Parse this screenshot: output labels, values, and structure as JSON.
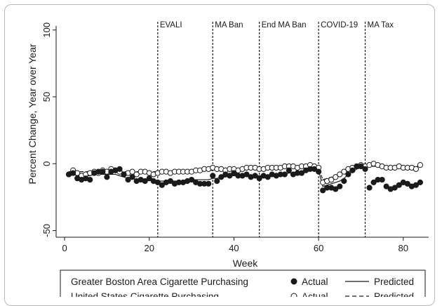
{
  "chart_data": {
    "type": "line",
    "xlabel": "Week",
    "ylabel": "Percent Change, Year over Year",
    "xlim": [
      -2,
      86
    ],
    "ylim": [
      -55,
      103
    ],
    "x_ticks": [
      0,
      20,
      40,
      60,
      80
    ],
    "y_ticks": [
      100,
      50,
      0,
      -50
    ],
    "events": [
      {
        "label": "EVALI",
        "x": 22
      },
      {
        "label": "MA Ban",
        "x": 35
      },
      {
        "label": "End MA Ban",
        "x": 46
      },
      {
        "label": "COVID-19",
        "x": 60
      },
      {
        "label": "MA Tax",
        "x": 71
      }
    ],
    "weeks": [
      1,
      2,
      3,
      4,
      5,
      6,
      7,
      8,
      9,
      10,
      11,
      12,
      13,
      14,
      15,
      16,
      17,
      18,
      19,
      20,
      21,
      22,
      23,
      24,
      25,
      26,
      27,
      28,
      29,
      30,
      31,
      32,
      33,
      34,
      35,
      36,
      37,
      38,
      39,
      40,
      41,
      42,
      43,
      44,
      45,
      46,
      47,
      48,
      49,
      50,
      51,
      52,
      53,
      54,
      55,
      56,
      57,
      58,
      59,
      60,
      61,
      62,
      63,
      64,
      65,
      66,
      67,
      68,
      69,
      70,
      71,
      72,
      73,
      74,
      75,
      76,
      77,
      78,
      79,
      80,
      81,
      82,
      83,
      84
    ],
    "series": [
      {
        "name": "Greater Boston Area Cigarette Purchasing",
        "actual": [
          -8,
          -7,
          -11,
          -12,
          -11,
          -12,
          -7,
          -6,
          -6,
          -10,
          -6,
          -5,
          -4,
          -8,
          -12,
          -10,
          -13,
          -12,
          -13,
          -11,
          -13,
          -14,
          -16,
          -14,
          -13,
          -15,
          -14,
          -14,
          -13,
          -12,
          -14,
          -15,
          -15,
          -15,
          -9,
          -13,
          -10,
          -8,
          -9,
          -7,
          -9,
          -9,
          -8,
          -10,
          -9,
          -11,
          -9,
          -10,
          -8,
          -9,
          -8,
          -8,
          -5,
          -8,
          -7,
          -7,
          -5,
          -4,
          -4,
          -6,
          -20,
          -18,
          -18,
          -19,
          -17,
          -13,
          -8,
          -5,
          -2,
          -2,
          -4,
          -18,
          -14,
          -12,
          -12,
          -17,
          -19,
          -18,
          -16,
          -14,
          -15,
          -17,
          -16,
          -14
        ],
        "predicted": [
          -8,
          -8,
          -9,
          -9,
          -9,
          -9,
          -8,
          -8,
          -8,
          -8,
          -8,
          -8,
          -9,
          -10,
          -11,
          -11,
          -12,
          -12,
          -12,
          -12,
          -13,
          -13,
          -13,
          -13,
          -13,
          -13,
          -13,
          -13,
          -13,
          -12,
          -12,
          -12,
          -12,
          -12,
          -11,
          -11,
          -10,
          -10,
          -9,
          -9,
          -9,
          -9,
          -9,
          -9,
          -9,
          -9,
          -9,
          -9,
          -8,
          -8,
          -8,
          -8,
          -7,
          -7,
          -7,
          -6,
          -6,
          -5,
          -5,
          -5,
          -17,
          -16,
          -15,
          -14,
          -13,
          -11,
          -8,
          -6,
          -4,
          -3,
          -3
        ]
      },
      {
        "name": "United States Cigarette Purchasing",
        "actual": [
          -8,
          -5,
          -7,
          -9,
          -8,
          -7,
          -6,
          -7,
          -5,
          -6,
          -4,
          -5,
          -6,
          -8,
          -7,
          -6,
          -8,
          -6,
          -6,
          -7,
          -8,
          -7,
          -6,
          -6,
          -7,
          -6,
          -6,
          -6,
          -6,
          -6,
          -5,
          -5,
          -4,
          -4,
          -3,
          -4,
          -4,
          -5,
          -4,
          -4,
          -5,
          -4,
          -3,
          -3,
          -3,
          -4,
          -4,
          -3,
          -3,
          -3,
          -3,
          -2,
          -2,
          -2,
          -3,
          -2,
          -2,
          -1,
          -2,
          -3,
          -14,
          -13,
          -12,
          -10,
          -8,
          -6,
          -4,
          -3,
          -2,
          -1,
          -2,
          -1,
          0,
          -1,
          -2,
          -3,
          -3,
          -3,
          -2,
          -3,
          -3,
          -3,
          -4,
          -1
        ],
        "predicted": [
          -6,
          -6,
          -6,
          -6,
          -6,
          -6,
          -6,
          -6,
          -6,
          -6,
          -6,
          -6,
          -6,
          -6,
          -6,
          -6,
          -6,
          -6,
          -6,
          -6,
          -6,
          -6,
          -6,
          -6,
          -6,
          -6,
          -6,
          -6,
          -6,
          -5,
          -5,
          -5,
          -5,
          -5,
          -5,
          -5,
          -5,
          -5,
          -4,
          -4,
          -4,
          -4,
          -4,
          -4,
          -4,
          -4,
          -4,
          -4,
          -4,
          -4,
          -3,
          -3,
          -3,
          -3,
          -3,
          -3,
          -3,
          -3,
          -3,
          -3,
          -12,
          -11,
          -10,
          -9,
          -8,
          -7,
          -6,
          -5,
          -4,
          -3,
          -3,
          -2,
          -2,
          -2,
          -2,
          -2,
          -2,
          -2,
          -2,
          -2,
          -2,
          -2,
          -2,
          -2
        ]
      }
    ],
    "legend": {
      "position": "bottom",
      "rows": [
        {
          "name": "Greater Boston Area Cigarette Purchasing",
          "actual_label": "Actual",
          "predicted_label": "Predicted"
        },
        {
          "name": "United States Cigarette Purchasing",
          "actual_label": "Actual",
          "predicted_label": "Predicted"
        }
      ]
    },
    "grid": false
  }
}
